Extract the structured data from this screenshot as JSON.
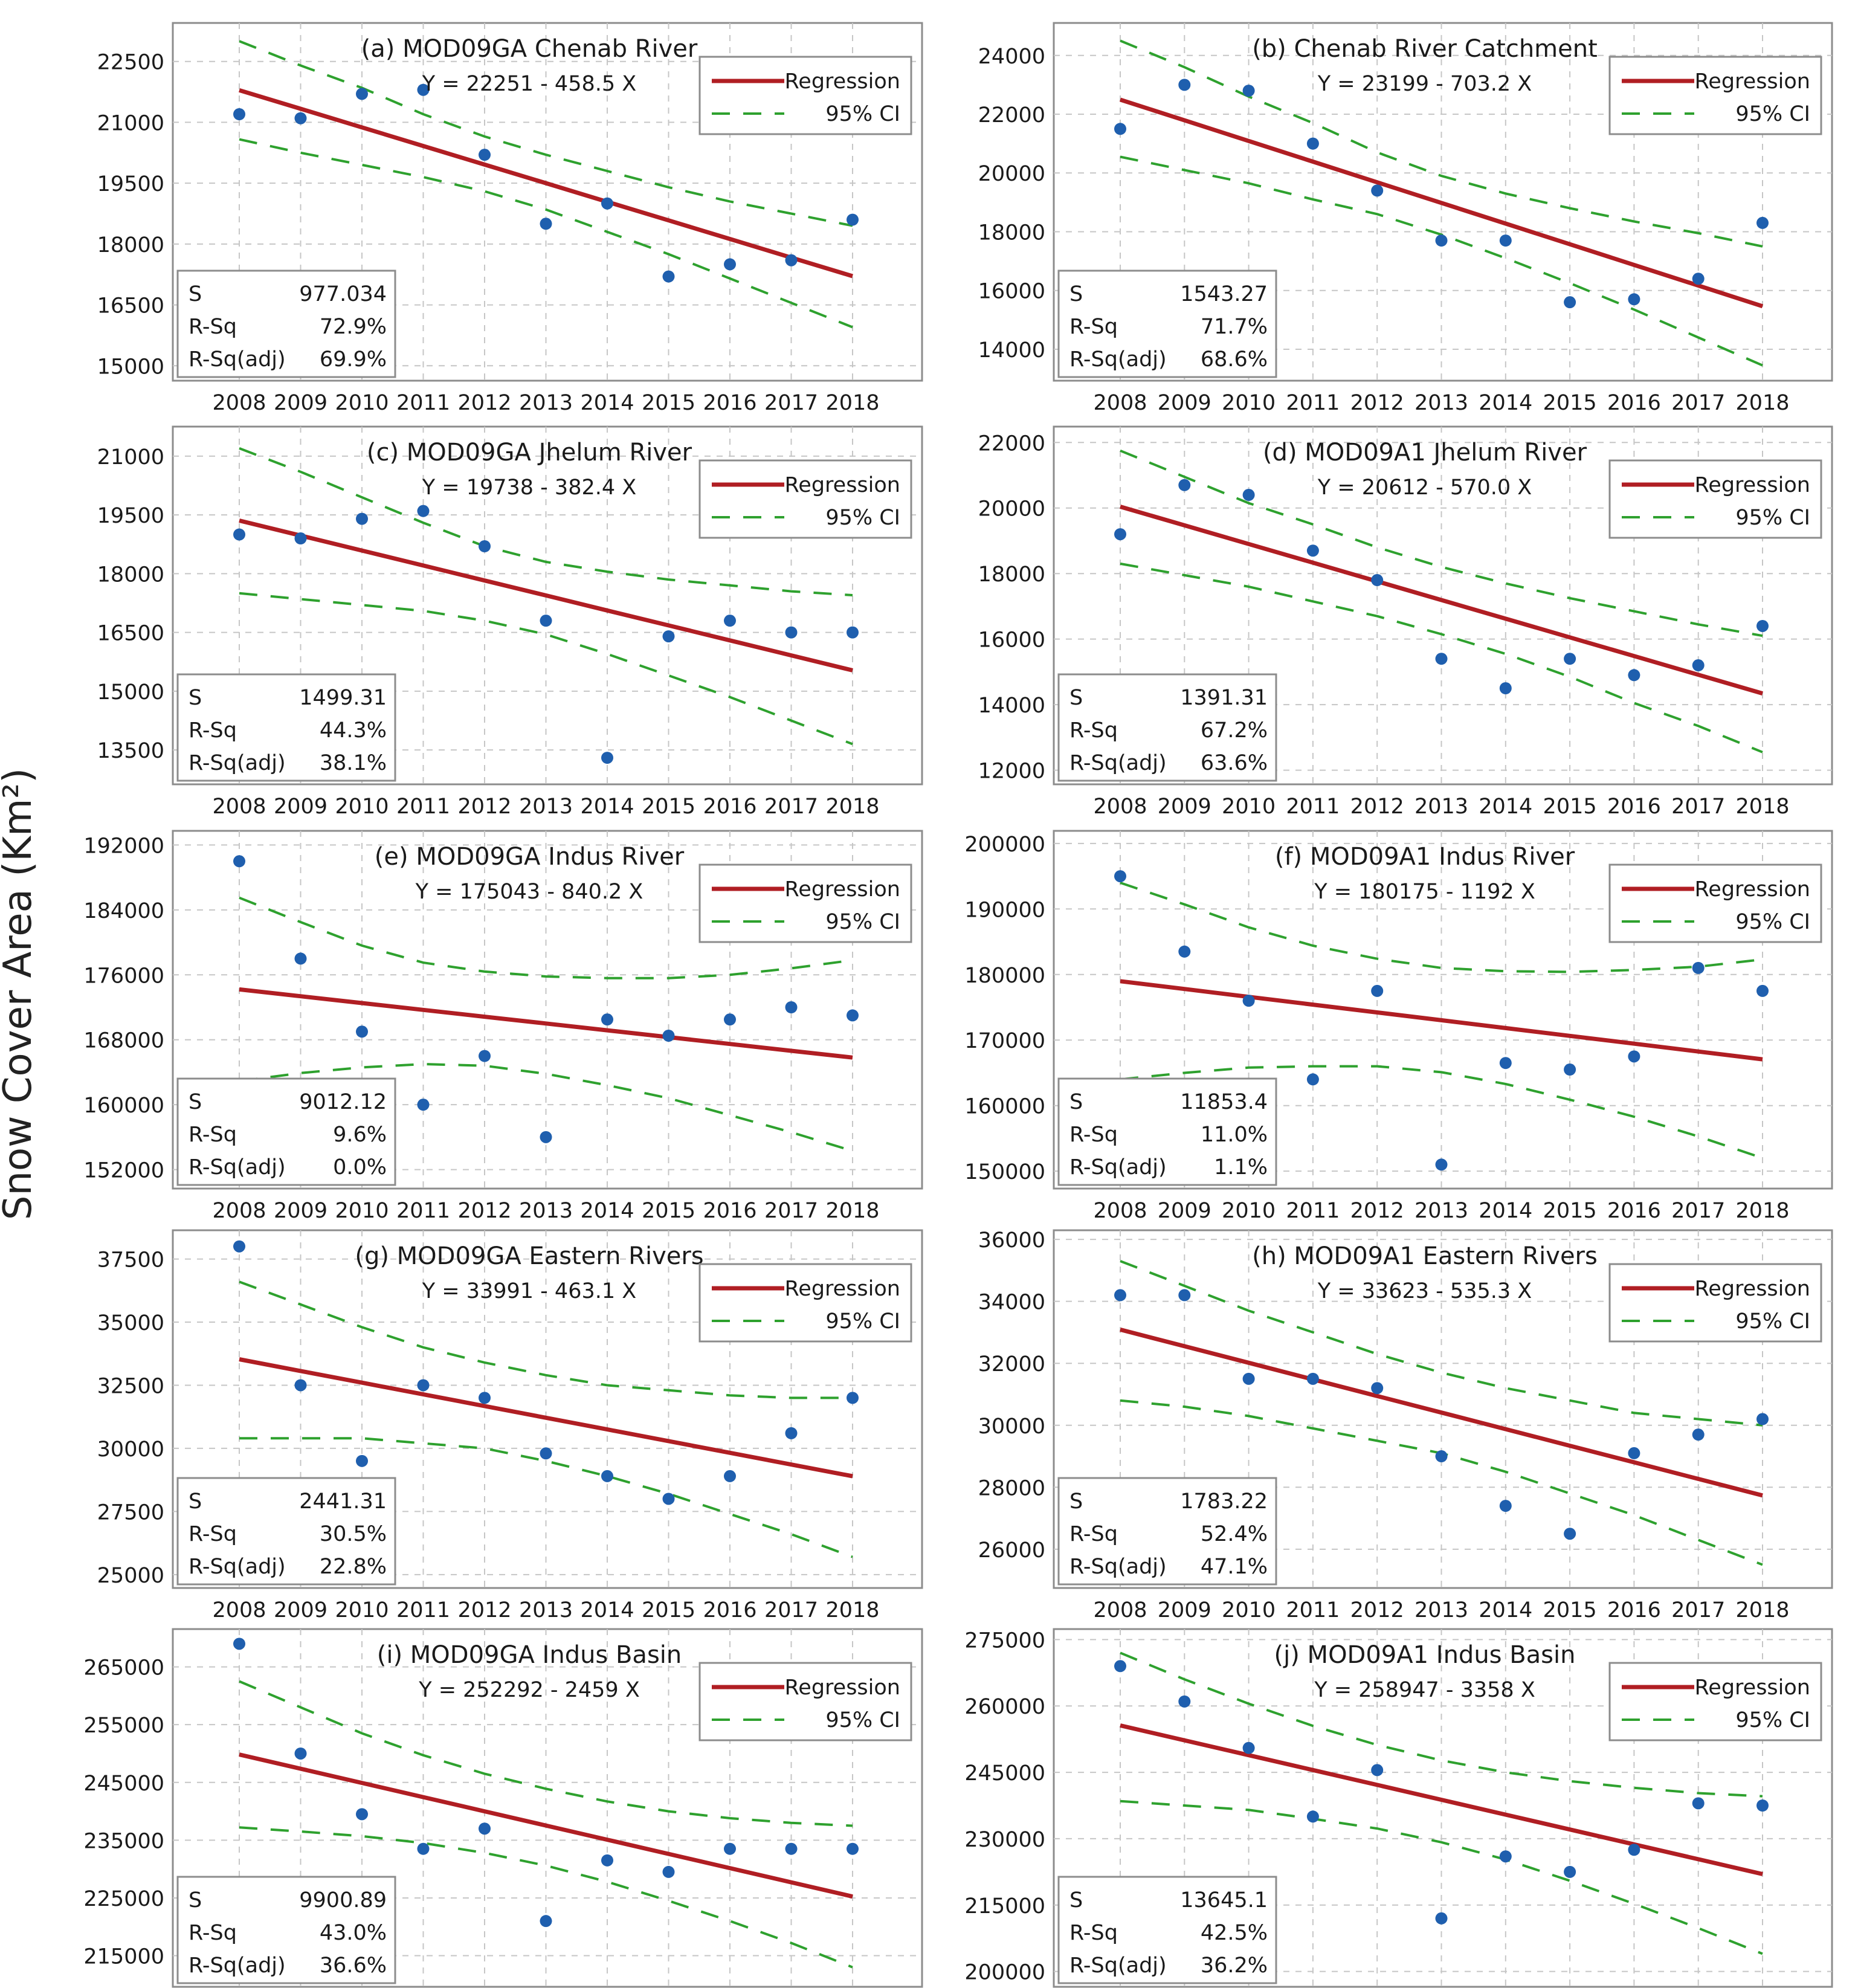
{
  "figure": {
    "ylabel": "Snow Cover Area (Km²)",
    "colors": {
      "regression": "#b01e23",
      "ci": "#2ea12e",
      "points": "#1f5fae",
      "grid": "#c6c6c6",
      "frame": "#8c8c8c",
      "text": "#1a1a1a"
    },
    "legend": {
      "regression": "Regression",
      "ci": "95% CI"
    },
    "stats_labels": [
      "S",
      "R-Sq",
      "R-Sq(adj)"
    ]
  },
  "chart_data": [
    {
      "id": "a",
      "type": "scatter",
      "title": "(a) MOD09GA Chenab River",
      "equation": "Y = 22251 - 458.5 X",
      "x": [
        2008,
        2009,
        2010,
        2011,
        2012,
        2013,
        2014,
        2015,
        2016,
        2017,
        2018
      ],
      "y": [
        21200,
        21100,
        21700,
        21800,
        20200,
        18500,
        19000,
        17200,
        17500,
        17600,
        18600
      ],
      "fit": [
        21792,
        21334,
        20875,
        20417,
        19958,
        19500,
        19041,
        18583,
        18124,
        17666,
        17208
      ],
      "ci_upper": [
        23000,
        22400,
        21850,
        21200,
        20650,
        20200,
        19800,
        19400,
        19050,
        18750,
        18450
      ],
      "ci_lower": [
        20580,
        20250,
        19950,
        19650,
        19300,
        18850,
        18300,
        17750,
        17150,
        16550,
        15950
      ],
      "yticks": [
        "22500",
        "21000",
        "19500",
        "18000",
        "16500",
        "15000"
      ],
      "ylim": [
        14900,
        23300
      ],
      "stats": {
        "S": "977.034",
        "R-Sq": "72.9%",
        "R-Sq(adj)": "69.9%"
      }
    },
    {
      "id": "b",
      "type": "scatter",
      "title": "(b) Chenab River Catchment",
      "equation": "Y = 23199 - 703.2 X",
      "x": [
        2008,
        2009,
        2010,
        2011,
        2012,
        2013,
        2014,
        2015,
        2016,
        2017,
        2018
      ],
      "y": [
        21500,
        23000,
        22800,
        21000,
        19400,
        17700,
        17700,
        15600,
        15700,
        16400,
        18300
      ],
      "fit": [
        22496,
        21793,
        21089,
        20386,
        19683,
        18980,
        18277,
        17574,
        16870,
        16167,
        15464
      ],
      "ci_upper": [
        24500,
        23600,
        22600,
        21700,
        20700,
        19900,
        19300,
        18800,
        18350,
        17950,
        17500
      ],
      "ci_lower": [
        20550,
        20100,
        19650,
        19100,
        18600,
        17900,
        17100,
        16250,
        15350,
        14400,
        13450
      ],
      "yticks": [
        "24000",
        "22000",
        "20000",
        "18000",
        "16000",
        "14000"
      ],
      "ylim": [
        13300,
        24900
      ],
      "stats": {
        "S": "1543.27",
        "R-Sq": "71.7%",
        "R-Sq(adj)": "68.6%"
      }
    },
    {
      "id": "c",
      "type": "scatter",
      "title": "(c) MOD09GA Jhelum River",
      "equation": "Y = 19738 - 382.4 X",
      "x": [
        2008,
        2009,
        2010,
        2011,
        2012,
        2013,
        2014,
        2015,
        2016,
        2017,
        2018
      ],
      "y": [
        19000,
        18900,
        19400,
        19600,
        18700,
        16800,
        13300,
        16400,
        16800,
        16500,
        16500
      ],
      "fit": [
        19356,
        18973,
        18591,
        18208,
        17826,
        17444,
        17061,
        16679,
        16296,
        15914,
        15532
      ],
      "ci_upper": [
        21200,
        20600,
        19950,
        19300,
        18700,
        18300,
        18050,
        17850,
        17700,
        17550,
        17450
      ],
      "ci_lower": [
        17500,
        17350,
        17200,
        17050,
        16800,
        16450,
        15950,
        15400,
        14850,
        14250,
        13650
      ],
      "yticks": [
        "21000",
        "19500",
        "18000",
        "16500",
        "15000",
        "13500"
      ],
      "ylim": [
        12900,
        21600
      ],
      "stats": {
        "S": "1499.31",
        "R-Sq": "44.3%",
        "R-Sq(adj)": "38.1%"
      }
    },
    {
      "id": "d",
      "type": "scatter",
      "title": "(d) MOD09A1 Jhelum River",
      "equation": "Y = 20612 - 570.0 X",
      "x": [
        2008,
        2009,
        2010,
        2011,
        2012,
        2013,
        2014,
        2015,
        2016,
        2017,
        2018
      ],
      "y": [
        19200,
        20700,
        20400,
        18700,
        17800,
        15400,
        14500,
        15400,
        14900,
        15200,
        16400
      ],
      "fit": [
        20042,
        19472,
        18902,
        18332,
        17762,
        17192,
        16622,
        16052,
        15482,
        14912,
        14342
      ],
      "ci_upper": [
        21750,
        20950,
        20150,
        19500,
        18800,
        18200,
        17700,
        17250,
        16850,
        16450,
        16100
      ],
      "ci_lower": [
        18300,
        17950,
        17600,
        17150,
        16700,
        16150,
        15550,
        14850,
        14050,
        13350,
        12550
      ],
      "yticks": [
        "22000",
        "20000",
        "18000",
        "16000",
        "14000",
        "12000"
      ],
      "ylim": [
        11900,
        22300
      ],
      "stats": {
        "S": "1391.31",
        "R-Sq": "67.2%",
        "R-Sq(adj)": "63.6%"
      }
    },
    {
      "id": "e",
      "type": "scatter",
      "title": "(e) MOD09GA Indus River",
      "equation": "Y = 175043 - 840.2 X",
      "x": [
        2008,
        2009,
        2010,
        2011,
        2012,
        2013,
        2014,
        2015,
        2016,
        2017,
        2018
      ],
      "y": [
        190000,
        178000,
        169000,
        160000,
        166000,
        156000,
        170500,
        168500,
        170500,
        172000,
        171000
      ],
      "fit": [
        174203,
        173363,
        172523,
        171682,
        170842,
        170002,
        169162,
        168322,
        167481,
        166641,
        165801
      ],
      "ci_upper": [
        185500,
        182500,
        179600,
        177500,
        176400,
        175800,
        175600,
        175600,
        176000,
        176800,
        177800
      ],
      "ci_lower": [
        162900,
        163900,
        164600,
        165000,
        164800,
        163800,
        162400,
        160800,
        158700,
        156600,
        154300
      ],
      "yticks": [
        "192000",
        "184000",
        "176000",
        "168000",
        "160000",
        "152000"
      ],
      "ylim": [
        151000,
        193000
      ],
      "stats": {
        "S": "9012.12",
        "R-Sq": "9.6%",
        "R-Sq(adj)": "0.0%"
      }
    },
    {
      "id": "f",
      "type": "scatter",
      "title": "(f) MOD09A1 Indus River",
      "equation": "Y = 180175 - 1192 X",
      "x": [
        2008,
        2009,
        2010,
        2011,
        2012,
        2013,
        2014,
        2015,
        2016,
        2017,
        2018
      ],
      "y": [
        195000,
        183500,
        176000,
        164000,
        177500,
        151000,
        166500,
        165500,
        167500,
        181000,
        177500
      ],
      "fit": [
        178983,
        177791,
        176599,
        175407,
        174215,
        173023,
        171831,
        170639,
        169447,
        168255,
        167063
      ],
      "ci_upper": [
        194000,
        190700,
        187200,
        184400,
        182400,
        181000,
        180500,
        180400,
        180700,
        181200,
        182300
      ],
      "ci_lower": [
        164000,
        165000,
        165800,
        166000,
        166000,
        165100,
        163300,
        160900,
        158300,
        155300,
        152000
      ],
      "yticks": [
        "200000",
        "190000",
        "180000",
        "170000",
        "160000",
        "150000"
      ],
      "ylim": [
        149000,
        201000
      ],
      "stats": {
        "S": "11853.4",
        "R-Sq": "11.0%",
        "R-Sq(adj)": "1.1%"
      }
    },
    {
      "id": "g",
      "type": "scatter",
      "title": "(g) MOD09GA Eastern Rivers",
      "equation": "Y = 33991 - 463.1 X",
      "x": [
        2008,
        2009,
        2010,
        2011,
        2012,
        2013,
        2014,
        2015,
        2016,
        2017,
        2018
      ],
      "y": [
        38000,
        32500,
        29500,
        32500,
        32000,
        29800,
        28900,
        28000,
        28900,
        30600,
        32000
      ],
      "fit": [
        33528,
        33065,
        32602,
        32139,
        31676,
        31213,
        30750,
        30287,
        29824,
        29360,
        28897
      ],
      "ci_upper": [
        36600,
        35700,
        34800,
        34000,
        33400,
        32900,
        32500,
        32300,
        32100,
        32000,
        32000
      ],
      "ci_lower": [
        30400,
        30400,
        30400,
        30200,
        30000,
        29500,
        28900,
        28200,
        27400,
        26600,
        25700
      ],
      "yticks": [
        "37500",
        "35000",
        "32500",
        "30000",
        "27500",
        "25000"
      ],
      "ylim": [
        24900,
        38400
      ],
      "stats": {
        "S": "2441.31",
        "R-Sq": "30.5%",
        "R-Sq(adj)": "22.8%"
      }
    },
    {
      "id": "h",
      "type": "scatter",
      "title": "(h) MOD09A1 Eastern Rivers",
      "equation": "Y = 33623 - 535.3 X",
      "x": [
        2008,
        2009,
        2010,
        2011,
        2012,
        2013,
        2014,
        2015,
        2016,
        2017,
        2018
      ],
      "y": [
        34200,
        34200,
        31500,
        31500,
        31200,
        29000,
        27400,
        26500,
        29100,
        29700,
        30200
      ],
      "fit": [
        33088,
        32552,
        32017,
        31482,
        30946,
        30411,
        29876,
        29341,
        28805,
        28270,
        27735
      ],
      "ci_upper": [
        35300,
        34500,
        33700,
        33000,
        32300,
        31700,
        31200,
        30800,
        30400,
        30200,
        30000
      ],
      "ci_lower": [
        30800,
        30600,
        30300,
        29900,
        29500,
        29100,
        28500,
        27800,
        27100,
        26300,
        25500
      ],
      "yticks": [
        "36000",
        "34000",
        "32000",
        "30000",
        "28000",
        "26000"
      ],
      "ylim": [
        25100,
        36100
      ],
      "stats": {
        "S": "1783.22",
        "R-Sq": "52.4%",
        "R-Sq(adj)": "47.1%"
      }
    },
    {
      "id": "i",
      "type": "scatter",
      "title": "(i) MOD09GA Indus Basin",
      "equation": "Y = 252292 - 2459 X",
      "x": [
        2008,
        2009,
        2010,
        2011,
        2012,
        2013,
        2014,
        2015,
        2016,
        2017,
        2018
      ],
      "y": [
        269000,
        250000,
        239500,
        233500,
        237000,
        221000,
        231500,
        229500,
        233500,
        233500,
        233500
      ],
      "fit": [
        249833,
        247374,
        244915,
        242456,
        239997,
        237538,
        235079,
        232620,
        230161,
        227702,
        225243
      ],
      "ci_upper": [
        262500,
        258000,
        253500,
        249700,
        246500,
        243900,
        241700,
        240000,
        238800,
        238000,
        237500
      ],
      "ci_lower": [
        237200,
        236500,
        235700,
        234500,
        232800,
        230600,
        227800,
        224500,
        221000,
        217200,
        213000
      ],
      "yticks": [
        "265000",
        "255000",
        "245000",
        "235000",
        "225000",
        "215000"
      ],
      "ylim": [
        211500,
        270500
      ],
      "stats": {
        "S": "9900.89",
        "R-Sq": "43.0%",
        "R-Sq(adj)": "36.6%"
      }
    },
    {
      "id": "j",
      "type": "scatter",
      "title": "(j) MOD09A1 Indus Basin",
      "equation": "Y = 258947 - 3358 X",
      "x": [
        2008,
        2009,
        2010,
        2011,
        2012,
        2013,
        2014,
        2015,
        2016,
        2017,
        2018
      ],
      "y": [
        269000,
        261000,
        250500,
        235000,
        245500,
        212000,
        226000,
        222500,
        227500,
        238000,
        237500
      ],
      "fit": [
        255589,
        252231,
        248873,
        245515,
        242157,
        238799,
        235441,
        232083,
        228725,
        225367,
        222009
      ],
      "ci_upper": [
        272000,
        266000,
        260500,
        255500,
        251200,
        247700,
        245000,
        243000,
        241500,
        240300,
        239600
      ],
      "ci_lower": [
        238500,
        237500,
        236500,
        234500,
        232300,
        229200,
        225300,
        220500,
        215300,
        209800,
        204000
      ],
      "yticks": [
        "275000",
        "260000",
        "245000",
        "230000",
        "215000",
        "200000"
      ],
      "ylim": [
        199000,
        276000
      ],
      "stats": {
        "S": "13645.1",
        "R-Sq": "42.5%",
        "R-Sq(adj)": "36.2%"
      }
    }
  ]
}
